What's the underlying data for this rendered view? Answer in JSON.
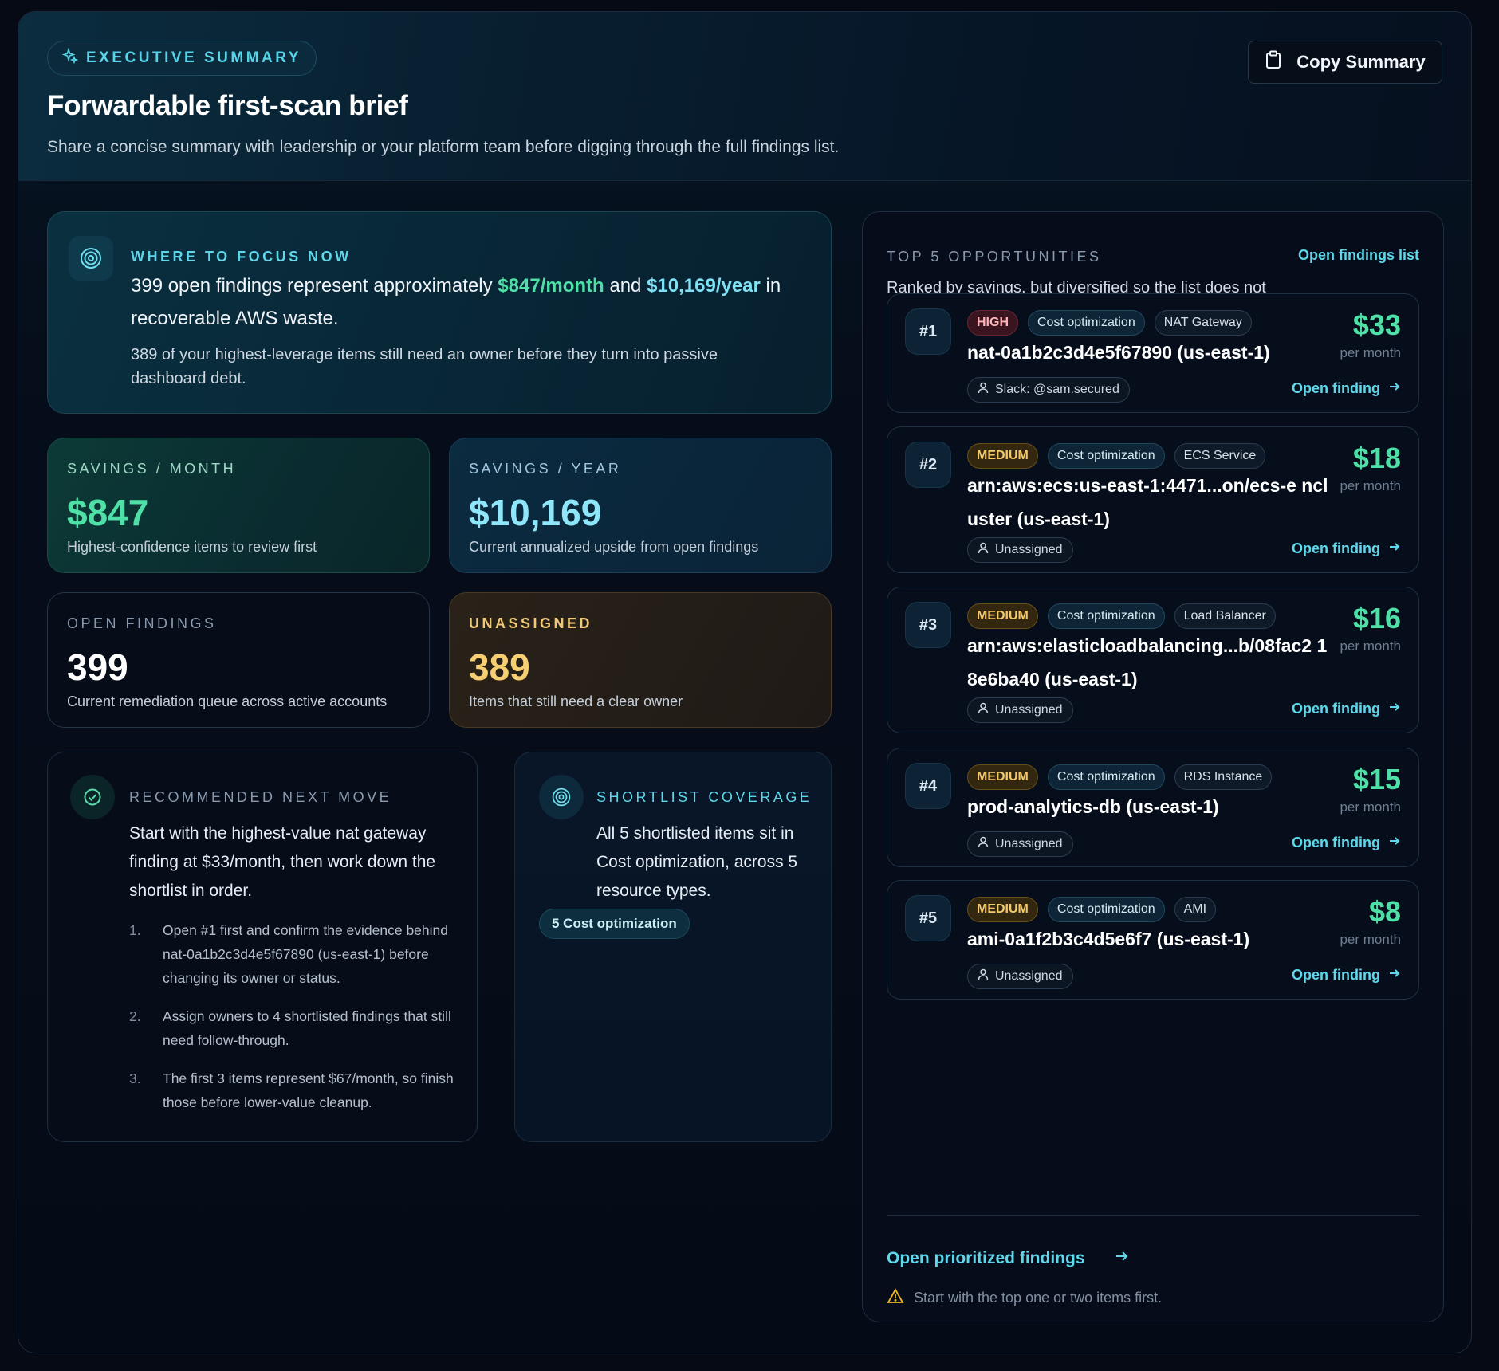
{
  "header": {
    "eyebrow": "EXECUTIVE SUMMARY",
    "title": "Forwardable first-scan brief",
    "subtitle": "Share a concise summary with leadership or your platform team before digging through the full findings list.",
    "copy_label": "Copy Summary"
  },
  "focus": {
    "label": "WHERE TO FOCUS NOW",
    "text_a": "399 open findings represent approximately ",
    "monthly": "$847/month",
    "text_b": " and ",
    "yearly": "$10,169/year",
    "text_c": " in recoverable AWS waste.",
    "detail": "389 of your highest-leverage items still need an owner before they turn into passive dashboard debt."
  },
  "stats": [
    {
      "label": "SAVINGS / MONTH",
      "value": "$847",
      "desc": "Highest-confidence items to review first"
    },
    {
      "label": "SAVINGS / YEAR",
      "value": "$10,169",
      "desc": "Current annualized upside from open findings"
    },
    {
      "label": "OPEN FINDINGS",
      "value": "399",
      "desc": "Current remediation queue across active accounts"
    },
    {
      "label": "UNASSIGNED",
      "value": "389",
      "desc": "Items that still need a clear owner"
    }
  ],
  "recommended": {
    "label": "RECOMMENDED NEXT MOVE",
    "lead": "Start with the highest-value nat gateway finding at $33/month, then work down the shortlist in order.",
    "steps": [
      {
        "n": "1.",
        "text": "Open #1 first and confirm the evidence behind nat-0a1b2c3d4e5f67890 (us-east-1) before changing its owner or status."
      },
      {
        "n": "2.",
        "text": "Assign owners to 4 shortlisted findings that still need follow-through."
      },
      {
        "n": "3.",
        "text": "The first 3 items represent $67/month, so finish those before lower-value cleanup."
      }
    ]
  },
  "coverage": {
    "label": "SHORTLIST COVERAGE",
    "lead": "All 5 shortlisted items sit in Cost optimization, across 5 resource types.",
    "pill": "5 Cost optimization"
  },
  "top5": {
    "label": "TOP 5 OPPORTUNITIES",
    "link": "Open findings list",
    "intro": "Ranked by savings, but diversified so the list does not repeat a single finding type.",
    "per_month": "per month",
    "open_label": "Open finding",
    "items": [
      {
        "rank": "#1",
        "severity": "HIGH",
        "category": "Cost optimization",
        "type": "NAT Gateway",
        "resource": "nat-0a1b2c3d4e5f67890 (us-east-1)",
        "owner": "Slack: @sam.secured",
        "amount": "$33"
      },
      {
        "rank": "#2",
        "severity": "MEDIUM",
        "category": "Cost optimization",
        "type": "ECS Service",
        "resource": "arn:aws:ecs:us-east-1:4471...on/ecs-e ncluster (us-east-1)",
        "owner": "Unassigned",
        "amount": "$18"
      },
      {
        "rank": "#3",
        "severity": "MEDIUM",
        "category": "Cost optimization",
        "type": "Load Balancer",
        "resource": "arn:aws:elasticloadbalancing...b/08fac2 18e6ba40 (us-east-1)",
        "owner": "Unassigned",
        "amount": "$16"
      },
      {
        "rank": "#4",
        "severity": "MEDIUM",
        "category": "Cost optimization",
        "type": "RDS Instance",
        "resource": "prod-analytics-db (us-east-1)",
        "owner": "Unassigned",
        "amount": "$15"
      },
      {
        "rank": "#5",
        "severity": "MEDIUM",
        "category": "Cost optimization",
        "type": "AMI",
        "resource": "ami-0a1f2b3c4d5e6f7 (us-east-1)",
        "owner": "Unassigned",
        "amount": "$8"
      }
    ],
    "cta": "Open prioritized findings",
    "note": "Start with the top one or two items first."
  }
}
